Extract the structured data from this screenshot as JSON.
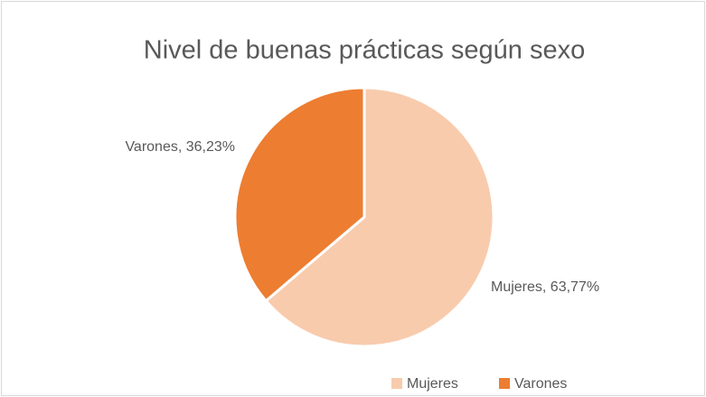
{
  "chart_data": {
    "type": "pie",
    "title": "Nivel de buenas prácticas según sexo",
    "categories": [
      "Mujeres",
      "Varones"
    ],
    "values": [
      63.77,
      36.23
    ],
    "value_labels": [
      "Mujeres, 63,77%",
      "Varones, 36,23%"
    ],
    "colors": [
      "#f8cbad",
      "#ed7d31"
    ],
    "legend": "bottom"
  }
}
